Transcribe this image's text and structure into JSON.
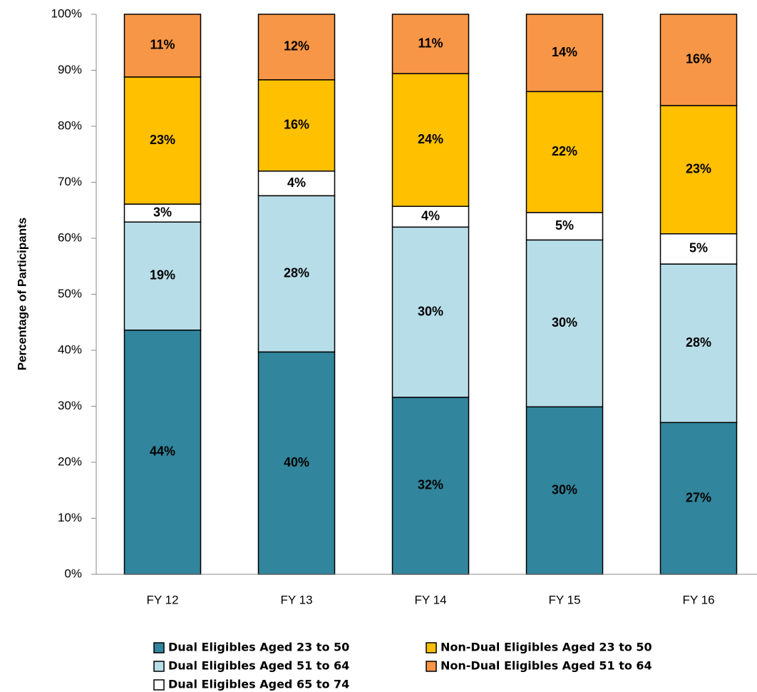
{
  "chart_data": {
    "type": "stacked_bar",
    "ylabel": "Percentage of Participants",
    "categories": [
      "FY 12",
      "FY 13",
      "FY 14",
      "FY 15",
      "FY 16"
    ],
    "ylim": [
      0,
      100
    ],
    "yticks": [
      {
        "value": 0,
        "label": "0%"
      },
      {
        "value": 10,
        "label": "10%"
      },
      {
        "value": 20,
        "label": "20%"
      },
      {
        "value": 30,
        "label": "30%"
      },
      {
        "value": 40,
        "label": "40%"
      },
      {
        "value": 50,
        "label": "50%"
      },
      {
        "value": 60,
        "label": "60%"
      },
      {
        "value": 70,
        "label": "70%"
      },
      {
        "value": 80,
        "label": "80%"
      },
      {
        "value": 90,
        "label": "90%"
      },
      {
        "value": 100,
        "label": "100%"
      }
    ],
    "series": [
      {
        "name": "Dual Eligibles Aged 23 to 50",
        "color": "#31859c",
        "values": [
          43.6,
          39.7,
          31.6,
          29.9,
          27.1
        ],
        "value_labels": [
          "44%",
          "40%",
          "32%",
          "30%",
          "27%"
        ]
      },
      {
        "name": "Dual Eligibles Aged 51 to 64",
        "color": "#b7dde8",
        "values": [
          19.3,
          27.9,
          30.4,
          29.8,
          28.3
        ],
        "value_labels": [
          "19%",
          "28%",
          "30%",
          "30%",
          "28%"
        ]
      },
      {
        "name": "Dual Eligibles Aged 65 to 74",
        "color": "#ffffff",
        "values": [
          3.2,
          4.4,
          3.7,
          4.9,
          5.4
        ],
        "value_labels": [
          "3%",
          "4%",
          "4%",
          "5%",
          "5%"
        ]
      },
      {
        "name": "Non-Dual Eligibles Aged 23 to 50",
        "color": "#ffc000",
        "values": [
          22.7,
          16.3,
          23.7,
          21.6,
          22.9
        ],
        "value_labels": [
          "23%",
          "16%",
          "24%",
          "22%",
          "23%"
        ]
      },
      {
        "name": "Non-Dual Eligibles Aged 51 to 64",
        "color": "#f79646",
        "values": [
          11.2,
          11.7,
          10.6,
          13.8,
          16.3
        ],
        "value_labels": [
          "11%",
          "12%",
          "11%",
          "14%",
          "16%"
        ]
      }
    ]
  }
}
